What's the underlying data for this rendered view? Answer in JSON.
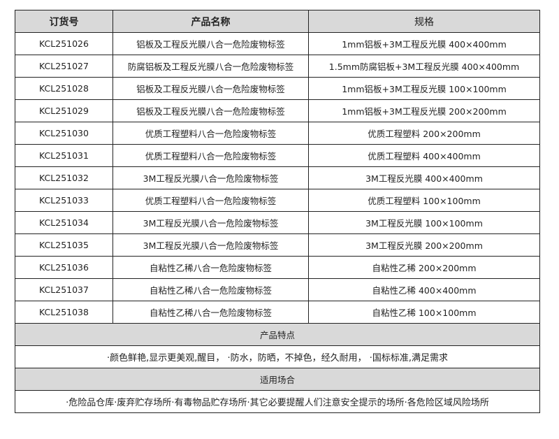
{
  "headers": [
    "订货号",
    "产品名称",
    "规格"
  ],
  "rows": [
    [
      "KCL251026",
      "铝板及工程反光膜八合一危险废物标签",
      "1mm铝板+3M工程反光膜  400×400mm"
    ],
    [
      "KCL251027",
      "防腐铝板及工程反光膜八合一危险废物标签",
      "1.5mm防腐铝板+3M工程反光膜  400×400mm"
    ],
    [
      "KCL251028",
      "铝板及工程反光膜八合一危险废物标签",
      "1mm铝板+3M工程反光膜  100×100mm"
    ],
    [
      "KCL251029",
      "铝板及工程反光膜八合一危险废物标签",
      "1mm铝板+3M工程反光膜  200×200mm"
    ],
    [
      "KCL251030",
      "优质工程塑料八合一危险废物标签",
      "优质工程塑料  200×200mm"
    ],
    [
      "KCL251031",
      "优质工程塑料八合一危险废物标签",
      "优质工程塑料  400×400mm"
    ],
    [
      "KCL251032",
      "3M工程反光膜八合一危险废物标签",
      "3M工程反光膜  400×400mm"
    ],
    [
      "KCL251033",
      "优质工程塑料八合一危险废物标签",
      "优质工程塑料  100×100mm"
    ],
    [
      "KCL251034",
      "3M工程反光膜八合一危险废物标签",
      "3M工程反光膜  100×100mm"
    ],
    [
      "KCL251035",
      "3M工程反光膜八合一危险废物标签",
      "3M工程反光膜  200×200mm"
    ],
    [
      "KCL251036",
      "自粘性乙稀八合一危险废物标签",
      "自粘性乙稀  200×200mm"
    ],
    [
      "KCL251037",
      "自粘性乙稀八合一危险废物标签",
      "自粘性乙稀  400×400mm"
    ],
    [
      "KCL251038",
      "自粘性乙稀八合一危险废物标签",
      "自粘性乙稀  100×100mm"
    ]
  ],
  "features": {
    "title": "产品特点",
    "text": "·颜色鲜艳,显示更美观,醒目， ·防水，防晒，不掉色，经久耐用， ·国标标准,满足需求"
  },
  "usage": {
    "title": "适用场合",
    "text": "·危险品仓库·废弃贮存场所·有毒物品贮存场所·其它必要提醒人们注意安全提示的场所·各危险区域风险场所"
  }
}
